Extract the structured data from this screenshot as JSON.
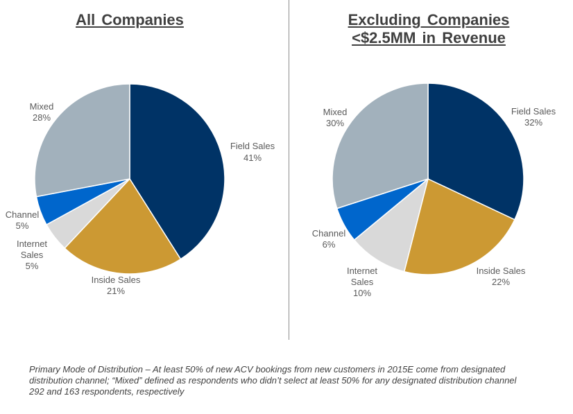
{
  "chart_data": [
    {
      "type": "pie",
      "title": "All Companies",
      "slices": [
        {
          "label": "Field Sales",
          "value": 41,
          "display": "41%",
          "color": "#003366"
        },
        {
          "label": "Inside Sales",
          "value": 21,
          "display": "21%",
          "color": "#CC9933"
        },
        {
          "label": "Internet Sales",
          "value": 5,
          "display": "5%",
          "color": "#D9D9D9"
        },
        {
          "label": "Channel",
          "value": 5,
          "display": "5%",
          "color": "#0066CC"
        },
        {
          "label": "Mixed",
          "value": 28,
          "display": "28%",
          "color": "#A2B1BC"
        }
      ]
    },
    {
      "type": "pie",
      "title": "Excluding Companies <$2.5MM in Revenue",
      "slices": [
        {
          "label": "Field Sales",
          "value": 32,
          "display": "32%",
          "color": "#003366"
        },
        {
          "label": "Inside Sales",
          "value": 22,
          "display": "22%",
          "color": "#CC9933"
        },
        {
          "label": "Internet Sales",
          "value": 10,
          "display": "10%",
          "color": "#D9D9D9"
        },
        {
          "label": "Channel",
          "value": 6,
          "display": "6%",
          "color": "#0066CC"
        },
        {
          "label": "Mixed",
          "value": 30,
          "display": "30%",
          "color": "#A2B1BC"
        }
      ]
    }
  ],
  "titles": {
    "left": "All Companies",
    "right_line1": "Excluding Companies",
    "right_line2": "<$2.5MM in Revenue"
  },
  "footnote": {
    "line1": "Primary Mode of Distribution – At least 50% of new ACV bookings from new customers in 2015E come from designated",
    "line2": "distribution channel; “Mixed” defined as respondents who didn’t select at least 50% for any designated distribution channel",
    "line3": "292 and 163 respondents, respectively"
  }
}
